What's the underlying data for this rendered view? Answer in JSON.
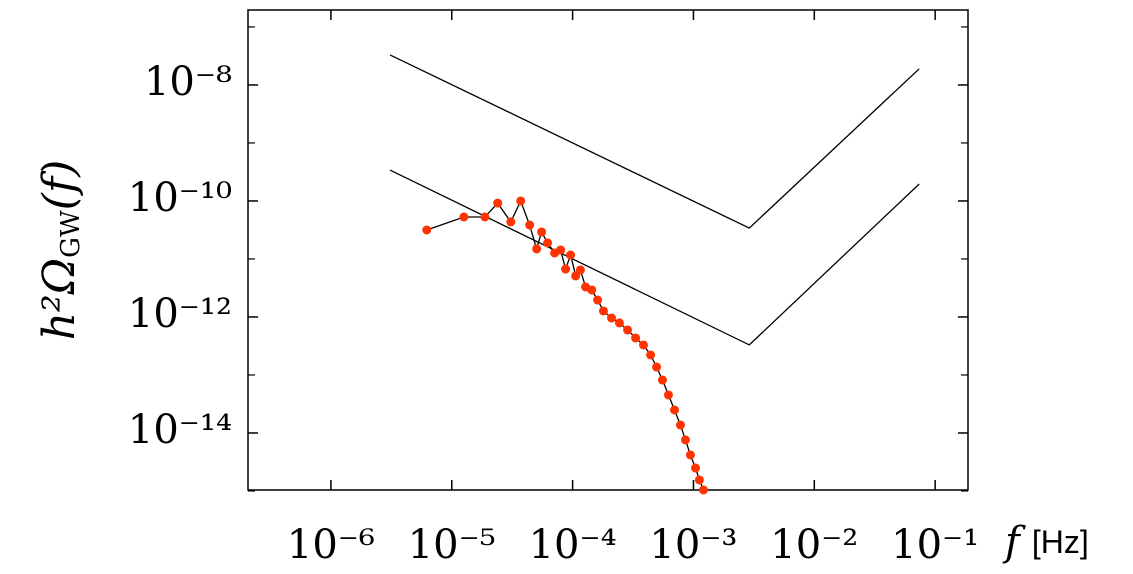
{
  "chart_data": {
    "type": "line",
    "xscale": "log",
    "yscale": "log",
    "xlabel": {
      "symbol": "f",
      "unit": "[Hz]"
    },
    "ylabel": {
      "text": "h²Ω",
      "subscript": "GW",
      "suffix": "(f)"
    },
    "xlim": [
      2.06e-07,
      0.187
    ],
    "ylim": [
      1.04e-15,
      1.96e-07
    ],
    "xticks": [
      {
        "value": 1e-06,
        "label": "10⁻⁶"
      },
      {
        "value": 1e-05,
        "label": "10⁻⁵"
      },
      {
        "value": 0.0001,
        "label": "10⁻⁴"
      },
      {
        "value": 0.001,
        "label": "10⁻³"
      },
      {
        "value": 0.01,
        "label": "10⁻²"
      },
      {
        "value": 0.1,
        "label": "10⁻¹"
      }
    ],
    "yticks": [
      {
        "value": 1e-08,
        "label": "10⁻⁸"
      },
      {
        "value": 1e-10,
        "label": "10⁻¹⁰"
      },
      {
        "value": 1e-12,
        "label": "10⁻¹²"
      },
      {
        "value": 1e-14,
        "label": "10⁻¹⁴"
      }
    ],
    "yticks_minor": [
      1e-07,
      1e-09,
      1e-11,
      1e-13,
      1e-15
    ],
    "series": [
      {
        "color": "#000000",
        "marker": false,
        "x": [
          3.08e-06,
          0.0029,
          0.0738
        ],
        "values": [
          3.3e-08,
          3.4e-11,
          1.9e-08
        ]
      },
      {
        "color": "#000000",
        "marker": false,
        "x": [
          3.08e-06,
          0.0029,
          0.0738
        ],
        "values": [
          3.4e-10,
          3.3e-13,
          1.96e-10
        ]
      },
      {
        "color": "#ff3300",
        "line_color": "#000000",
        "marker": true,
        "x": [
          6.21e-06,
          1.26e-05,
          1.88e-05,
          2.4e-05,
          3.08e-05,
          3.72e-05,
          4.41e-05,
          5.04e-05,
          5.54e-05,
          6.21e-05,
          7.1e-05,
          7.96e-05,
          8.75e-05,
          9.62e-05,
          0.000106,
          0.000116,
          0.000128,
          0.000144,
          0.000161,
          0.00018,
          0.00021,
          0.000244,
          0.000285,
          0.000332,
          0.000386,
          0.000442,
          0.000495,
          0.000554,
          0.000621,
          0.000697,
          0.000781,
          0.000859,
          0.000944,
          0.00104,
          0.00112,
          0.00121
        ],
        "values": [
          3.16e-11,
          5.3e-11,
          5.3e-11,
          9.2e-11,
          4.35e-11,
          1e-10,
          3.85e-11,
          1.49e-11,
          2.92e-11,
          1.89e-11,
          1.27e-11,
          1.43e-11,
          6.7e-12,
          1.17e-11,
          5.1e-12,
          6.46e-12,
          3.29e-12,
          2.92e-12,
          1.96e-12,
          1.27e-12,
          9.6e-13,
          7.9e-13,
          5.97e-13,
          4.35e-13,
          3.29e-13,
          2.21e-13,
          1.37e-13,
          8.2e-14,
          4.52e-14,
          2.49e-14,
          1.37e-14,
          7.6e-15,
          4.18e-15,
          2.49e-15,
          1.55e-15,
          1.04e-15
        ]
      }
    ]
  }
}
